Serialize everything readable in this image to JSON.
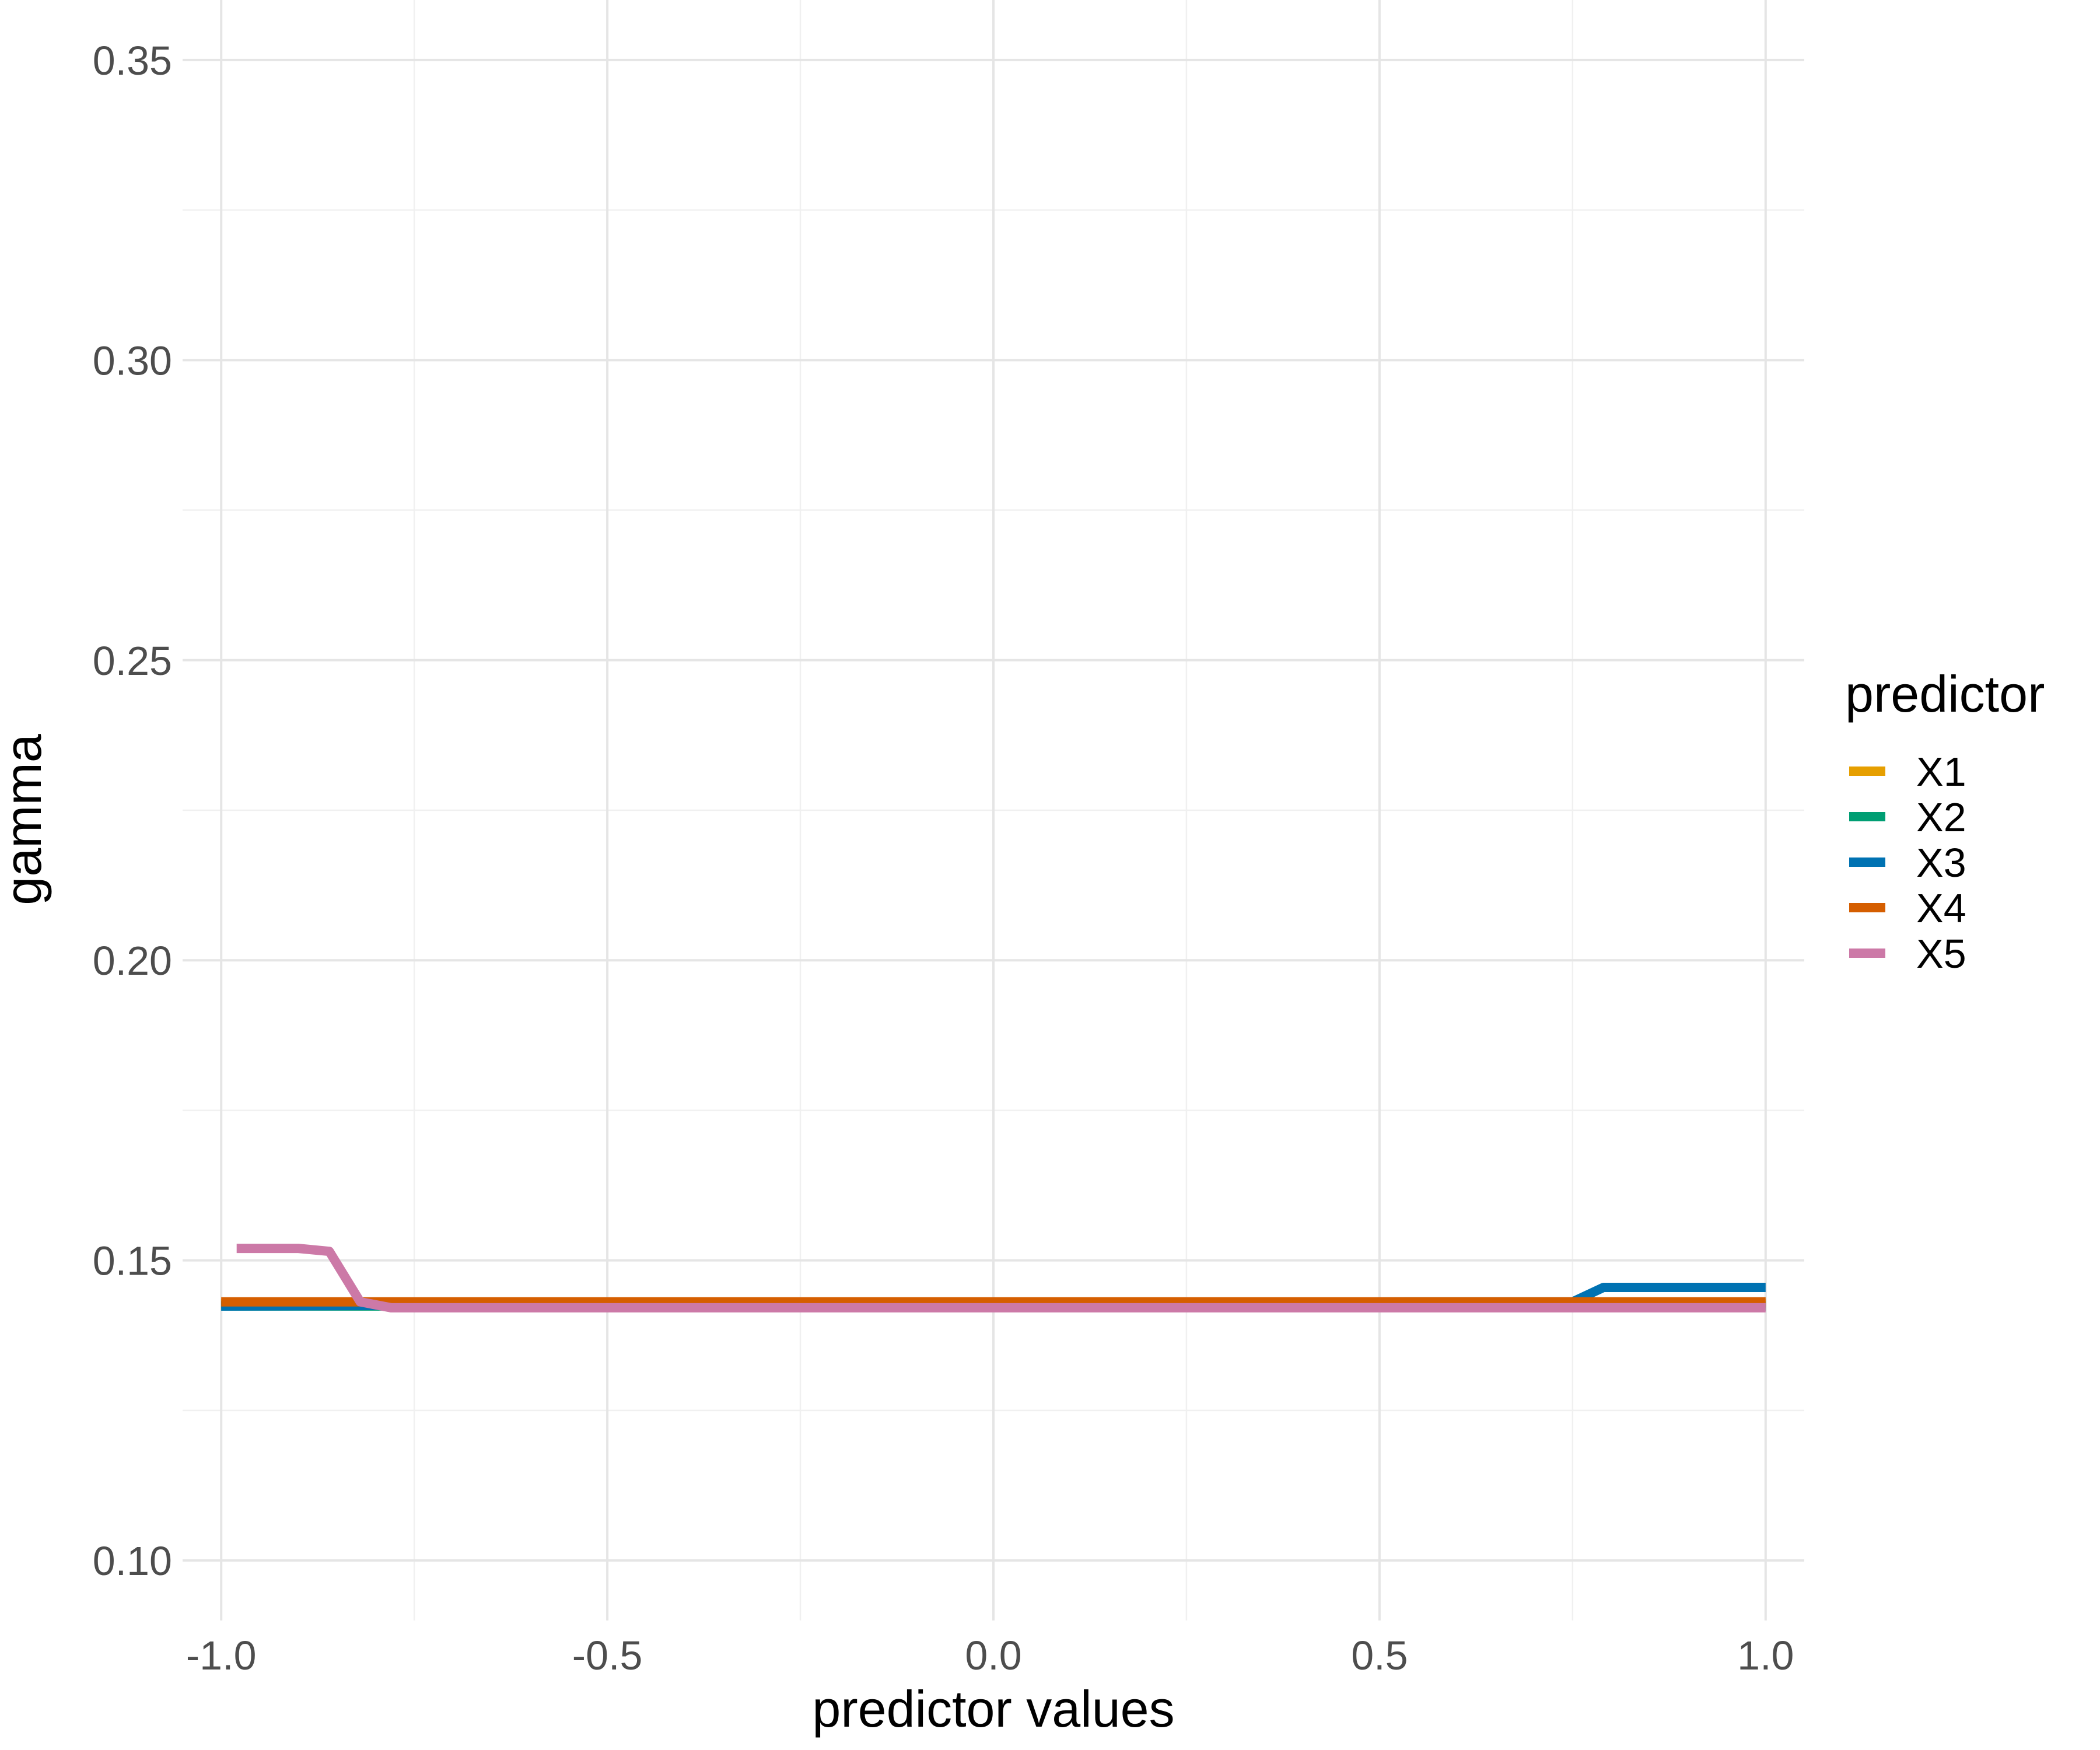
{
  "chart_data": {
    "type": "line",
    "title": "",
    "xlabel": "predictor values",
    "ylabel": "gamma",
    "xlim": [
      -1.05,
      1.05
    ],
    "ylim": [
      0.09,
      0.36
    ],
    "x_ticks": [
      "-1.0",
      "-0.5",
      "0.0",
      "0.5",
      "1.0"
    ],
    "y_ticks": [
      "0.10",
      "0.15",
      "0.20",
      "0.25",
      "0.30",
      "0.35"
    ],
    "grid": true,
    "legend": {
      "title": "predictor",
      "placement": "right"
    },
    "series": [
      {
        "name": "X1",
        "color": "#E69F00",
        "x": [
          -1.0,
          1.0
        ],
        "y": [
          0.1428,
          0.1428
        ]
      },
      {
        "name": "X2",
        "color": "#009E73",
        "x": [
          -1.0,
          1.0
        ],
        "y": [
          0.1424,
          0.1424
        ]
      },
      {
        "name": "X3",
        "color": "#0072B2",
        "x": [
          -1.0,
          0.55,
          0.75,
          0.79,
          1.0
        ],
        "y": [
          0.1424,
          0.1431,
          0.1431,
          0.1455,
          0.1455
        ]
      },
      {
        "name": "X4",
        "color": "#D55E00",
        "x": [
          -1.0,
          1.0
        ],
        "y": [
          0.1431,
          0.1431
        ]
      },
      {
        "name": "X5",
        "color": "#CC79A7",
        "x": [
          -0.98,
          -0.9,
          -0.86,
          -0.82,
          -0.78,
          1.0
        ],
        "y": [
          0.152,
          0.152,
          0.1515,
          0.1431,
          0.1421,
          0.1421
        ]
      }
    ]
  }
}
